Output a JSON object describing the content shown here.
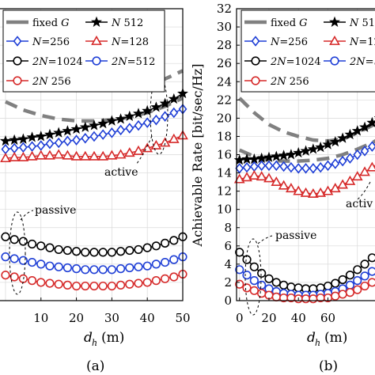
{
  "chart_data": [
    {
      "type": "line",
      "subfigure_label": "(a)",
      "xlabel": "d_h (m)",
      "ylabel": "",
      "xlim": [
        -2,
        50
      ],
      "ylim": [
        0,
        32
      ],
      "x_ticks": [
        "10",
        "20",
        "30",
        "40",
        "50"
      ],
      "x": [
        0,
        2.5,
        5,
        7.5,
        10,
        12.5,
        15,
        17.5,
        20,
        22.5,
        25,
        27.5,
        30,
        32.5,
        35,
        37.5,
        40,
        42.5,
        45,
        47.5,
        50
      ],
      "grid": true,
      "legend": {
        "position": "top",
        "entries": [
          {
            "label_main": "fixed ",
            "label_italic": "G",
            "symbol": "dash",
            "color": "#808080"
          },
          {
            "label_main": "N",
            "label_rest": " 512",
            "symbol": "star",
            "color": "#000000"
          },
          {
            "label_main": "N",
            "label_rest": "=256",
            "symbol": "diamond",
            "color": "#1f3fd6"
          },
          {
            "label_main": "N",
            "label_rest": "=128",
            "symbol": "triangle",
            "color": "#d62a2a"
          },
          {
            "label_main": "2N",
            "label_rest": "=1024",
            "symbol": "circle",
            "color": "#000000"
          },
          {
            "label_main": "2N",
            "label_rest": "=512",
            "symbol": "circle",
            "color": "#1f3fd6"
          },
          {
            "label_main": "2N",
            "label_rest": " 256",
            "symbol": "circle",
            "color": "#d62a2a"
          }
        ]
      },
      "annotations": [
        "active",
        "passive"
      ],
      "series": [
        {
          "role": "fixed-G upper",
          "marker": "none",
          "color": "#808080",
          "dashed": true,
          "x": [
            0,
            5,
            10,
            15,
            20,
            25,
            30,
            35,
            40,
            45,
            50
          ],
          "values": [
            26.0,
            25.3,
            24.6,
            24.1,
            23.7,
            23.4,
            23.3,
            23.4,
            23.7,
            24.3,
            25.2
          ]
        },
        {
          "role": "fixed-G lower",
          "marker": "none",
          "color": "#808080",
          "dashed": true,
          "x": [
            0,
            5,
            10,
            15,
            20,
            25,
            30,
            35,
            40,
            45,
            50
          ],
          "values": [
            21.8,
            20.9,
            20.3,
            19.9,
            19.7,
            19.7,
            19.8,
            20.1,
            20.6,
            21.3,
            22.2
          ]
        },
        {
          "name": "N 512",
          "marker": "star",
          "color": "#000000",
          "values": [
            17.5,
            17.6,
            17.7,
            17.9,
            18.0,
            18.2,
            18.4,
            18.6,
            18.8,
            19.0,
            19.2,
            19.4,
            19.7,
            19.9,
            20.2,
            20.5,
            20.8,
            21.2,
            21.6,
            22.1,
            22.7
          ]
        },
        {
          "name": "N=256",
          "marker": "diamond",
          "color": "#1f3fd6",
          "values": [
            16.6,
            16.7,
            16.8,
            16.9,
            17.0,
            17.2,
            17.3,
            17.5,
            17.6,
            17.8,
            18.0,
            18.2,
            18.4,
            18.7,
            18.9,
            19.2,
            19.5,
            19.8,
            20.2,
            20.6,
            21.0
          ]
        },
        {
          "name": "N=128",
          "marker": "triangle",
          "color": "#d62a2a",
          "values": [
            15.6,
            15.7,
            15.7,
            15.8,
            15.9,
            15.9,
            16.0,
            15.9,
            15.8,
            15.8,
            15.8,
            15.8,
            15.9,
            16.0,
            16.2,
            16.4,
            16.7,
            17.0,
            17.3,
            17.7,
            18.1
          ]
        },
        {
          "name": "2N=1024",
          "marker": "circle",
          "color": "#000000",
          "values": [
            7.0,
            6.7,
            6.5,
            6.2,
            6.0,
            5.8,
            5.6,
            5.5,
            5.4,
            5.3,
            5.3,
            5.3,
            5.3,
            5.4,
            5.5,
            5.6,
            5.8,
            6.0,
            6.3,
            6.6,
            7.0
          ]
        },
        {
          "name": "2N=512",
          "marker": "circle",
          "color": "#1f3fd6",
          "values": [
            4.8,
            4.6,
            4.4,
            4.2,
            4.0,
            3.8,
            3.7,
            3.6,
            3.5,
            3.4,
            3.4,
            3.4,
            3.4,
            3.5,
            3.6,
            3.7,
            3.8,
            4.0,
            4.2,
            4.5,
            4.8
          ]
        },
        {
          "name": "2N 256",
          "marker": "circle",
          "color": "#d62a2a",
          "values": [
            2.8,
            2.6,
            2.4,
            2.2,
            2.0,
            1.9,
            1.8,
            1.7,
            1.6,
            1.6,
            1.6,
            1.6,
            1.6,
            1.7,
            1.8,
            1.9,
            2.0,
            2.2,
            2.4,
            2.6,
            2.9
          ]
        }
      ]
    },
    {
      "type": "line",
      "subfigure_label": "(b)",
      "xlabel": "d_h (m)",
      "ylabel": "Achievable Rate [bit/sec/Hz]",
      "xlim": [
        -2,
        100
      ],
      "ylim": [
        0,
        32
      ],
      "y_ticks": [
        "0",
        "2",
        "4",
        "6",
        "8",
        "10",
        "12",
        "14",
        "16",
        "18",
        "20",
        "22",
        "24",
        "26",
        "28",
        "30",
        "32"
      ],
      "x_ticks": [
        "0",
        "20",
        "40",
        "60"
      ],
      "x": [
        0,
        5,
        10,
        15,
        20,
        25,
        30,
        35,
        40,
        45,
        50,
        55,
        60,
        65,
        70,
        75,
        80,
        85,
        90,
        95,
        100
      ],
      "grid": true,
      "legend": {
        "position": "top",
        "entries": [
          {
            "label_main": "fixed ",
            "label_italic": "G",
            "symbol": "dash",
            "color": "#808080"
          },
          {
            "label_main": "N",
            "label_rest": " 51",
            "symbol": "star",
            "color": "#000000"
          },
          {
            "label_main": "N",
            "label_rest": "=256",
            "symbol": "diamond",
            "color": "#1f3fd6"
          },
          {
            "label_main": "N",
            "label_rest": "=12",
            "symbol": "triangle",
            "color": "#d62a2a"
          },
          {
            "label_main": "2N",
            "label_rest": "=1024",
            "symbol": "circle",
            "color": "#000000"
          },
          {
            "label_main": "2N",
            "label_rest": "=5",
            "symbol": "circle",
            "color": "#1f3fd6"
          },
          {
            "label_main": "2N",
            "label_rest": " 256",
            "symbol": "circle",
            "color": "#d62a2a"
          }
        ]
      },
      "annotations": [
        "activ",
        "passive"
      ],
      "series": [
        {
          "role": "fixed-G upper",
          "marker": "none",
          "color": "#808080",
          "dashed": true,
          "x": [
            0,
            10,
            20,
            30,
            40,
            50,
            60,
            70,
            80,
            90,
            100
          ],
          "values": [
            22.2,
            20.6,
            19.3,
            18.5,
            18.0,
            17.6,
            17.5,
            17.7,
            18.4,
            19.2,
            20.2
          ]
        },
        {
          "role": "fixed-G lower",
          "marker": "none",
          "color": "#808080",
          "dashed": true,
          "x": [
            0,
            10,
            20,
            30,
            40,
            50,
            60,
            70,
            80,
            90,
            100
          ],
          "values": [
            16.5,
            15.8,
            15.4,
            15.3,
            15.3,
            15.4,
            15.6,
            16.0,
            16.6,
            17.3,
            18.2
          ]
        },
        {
          "name": "N 512",
          "marker": "star",
          "color": "#000000",
          "values": [
            15.4,
            15.5,
            15.5,
            15.6,
            15.7,
            15.8,
            15.9,
            16.0,
            16.2,
            16.4,
            16.6,
            16.8,
            17.1,
            17.4,
            17.8,
            18.2,
            18.6,
            19.0,
            19.5,
            20.0,
            20.5
          ]
        },
        {
          "name": "N=256",
          "marker": "diamond",
          "color": "#1f3fd6",
          "values": [
            14.5,
            14.6,
            14.7,
            14.8,
            14.8,
            14.8,
            14.7,
            14.6,
            14.5,
            14.5,
            14.5,
            14.6,
            14.8,
            15.0,
            15.3,
            15.6,
            16.0,
            16.4,
            16.9,
            17.4,
            17.9
          ]
        },
        {
          "name": "N=128",
          "marker": "triangle",
          "color": "#d62a2a",
          "values": [
            13.3,
            13.5,
            13.7,
            13.6,
            13.4,
            13.0,
            12.6,
            12.3,
            12.0,
            11.8,
            11.7,
            11.8,
            12.0,
            12.3,
            12.7,
            13.1,
            13.6,
            14.1,
            14.6,
            15.1,
            15.6
          ]
        },
        {
          "name": "2N=1024",
          "marker": "circle",
          "color": "#000000",
          "values": [
            5.3,
            4.5,
            3.7,
            3.0,
            2.4,
            2.0,
            1.7,
            1.5,
            1.4,
            1.3,
            1.3,
            1.4,
            1.6,
            1.9,
            2.3,
            2.8,
            3.4,
            4.0,
            4.7,
            5.4,
            6.1
          ]
        },
        {
          "name": "2N=512",
          "marker": "circle",
          "color": "#1f3fd6",
          "values": [
            3.4,
            2.8,
            2.2,
            1.7,
            1.3,
            1.0,
            0.8,
            0.7,
            0.6,
            0.6,
            0.6,
            0.7,
            0.8,
            1.0,
            1.3,
            1.7,
            2.2,
            2.7,
            3.2,
            3.8,
            4.4
          ]
        },
        {
          "name": "2N 256",
          "marker": "circle",
          "color": "#d62a2a",
          "values": [
            1.8,
            1.4,
            1.1,
            0.8,
            0.6,
            0.4,
            0.3,
            0.3,
            0.2,
            0.2,
            0.2,
            0.3,
            0.3,
            0.5,
            0.7,
            0.9,
            1.2,
            1.6,
            2.0,
            2.4,
            2.9
          ]
        }
      ]
    }
  ]
}
